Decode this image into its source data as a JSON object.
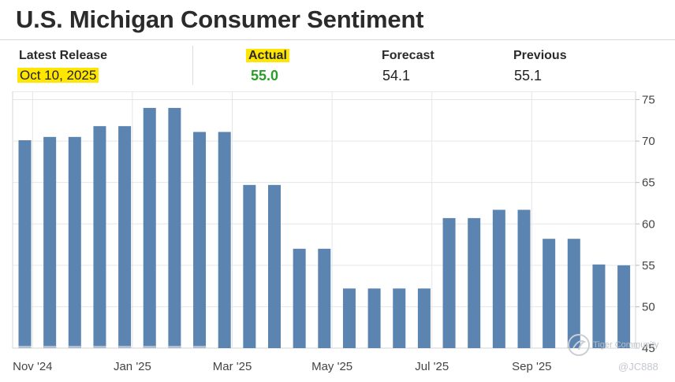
{
  "header": {
    "title": "U.S. Michigan Consumer Sentiment"
  },
  "stats": {
    "latest_release_label": "Latest Release",
    "latest_release_value": "Oct 10, 2025",
    "actual_label": "Actual",
    "actual_value": "55.0",
    "forecast_label": "Forecast",
    "forecast_value": "54.1",
    "previous_label": "Previous",
    "previous_value": "55.1"
  },
  "watermark": {
    "brand": "Tiger Community",
    "user": "@JC888"
  },
  "colors": {
    "bar": "#5b84b1",
    "highlight": "#ffe600",
    "actual": "#2a9d2a",
    "grid": "#e6e6e6"
  },
  "chart_data": {
    "type": "bar",
    "title": "U.S. Michigan Consumer Sentiment",
    "xlabel": "",
    "ylabel": "",
    "ylim": [
      45,
      76
    ],
    "yticks": [
      45,
      50,
      55,
      60,
      65,
      70,
      75
    ],
    "xtick_labels": [
      "Nov '24",
      "Jan '25",
      "Mar '25",
      "May '25",
      "Jul '25",
      "Sep '25"
    ],
    "xtick_positions": [
      1,
      5,
      9,
      13,
      17,
      21
    ],
    "values": [
      70.1,
      70.5,
      70.5,
      71.8,
      71.8,
      74.0,
      74.0,
      71.1,
      71.1,
      64.7,
      64.7,
      57.0,
      57.0,
      52.2,
      52.2,
      52.2,
      52.2,
      60.7,
      60.7,
      61.7,
      61.7,
      58.2,
      58.2,
      55.1,
      55.0
    ],
    "grid": true,
    "legend": "none",
    "y_axis_side": "right"
  }
}
